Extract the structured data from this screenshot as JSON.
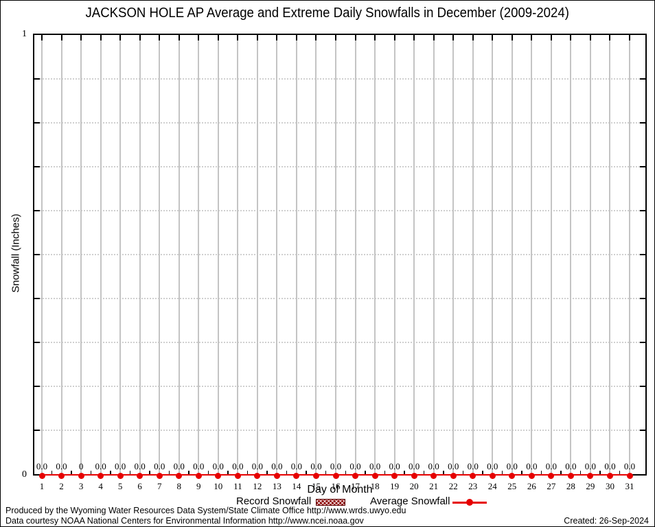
{
  "title": "JACKSON HOLE AP Average and Extreme Daily Snowfalls in December (2009-2024)",
  "chart_data": {
    "type": "bar",
    "title": "JACKSON HOLE AP Average and Extreme Daily Snowfalls in December (2009-2024)",
    "xlabel": "Day of Month",
    "ylabel": "Snowfall (Inches)",
    "ylim": [
      0,
      1
    ],
    "ytick_labels": [
      "0",
      "1"
    ],
    "minor_grid_step": 0.1,
    "grid": "on",
    "legend_position": "bottom",
    "categories": [
      1,
      2,
      3,
      4,
      5,
      6,
      7,
      8,
      9,
      10,
      11,
      12,
      13,
      14,
      15,
      16,
      17,
      18,
      19,
      20,
      21,
      22,
      23,
      24,
      25,
      26,
      27,
      28,
      29,
      30,
      31
    ],
    "series": [
      {
        "name": "Record Snowfall",
        "type": "bar",
        "color": "#8b0000",
        "values": [
          0,
          0,
          0,
          0,
          0,
          0,
          0,
          0,
          0,
          0,
          0,
          0,
          0,
          0,
          0,
          0,
          0,
          0,
          0,
          0,
          0,
          0,
          0,
          0,
          0,
          0,
          0,
          0,
          0,
          0,
          0
        ]
      },
      {
        "name": "Average Snowfall",
        "type": "line",
        "color": "#e60000",
        "values": [
          0.0,
          0.0,
          0.0,
          0.0,
          0.0,
          0.0,
          0.0,
          0.0,
          0.0,
          0.0,
          0.0,
          0.0,
          0.0,
          0.0,
          0.0,
          0.0,
          0.0,
          0.0,
          0.0,
          0.0,
          0.0,
          0.0,
          0.0,
          0.0,
          0.0,
          0.0,
          0.0,
          0.0,
          0.0,
          0.0,
          0.0
        ]
      }
    ],
    "point_labels": [
      "0.0",
      "0.0",
      "0",
      "0.0",
      "0.0",
      "0.0",
      "0.0",
      "0.0",
      "0.0",
      "0.0",
      "0.0",
      "0.0",
      "0.0",
      "0.0",
      "0.0",
      "0.0",
      "0.0",
      "0.0",
      "0.0",
      "0.0",
      "0.0",
      "0.0",
      "0.0",
      "0.0",
      "0.0",
      "0.0",
      "0.0",
      "0.0",
      "0.0",
      "0.0",
      "0.0"
    ]
  },
  "colors": {
    "line_red": "#e60000",
    "record_dark_red": "#8b0000",
    "gridline_gray": "#c4c4c4",
    "dotted_gray": "#cfcfcf",
    "frame_black": "#000000"
  },
  "footer": {
    "line1": "Produced by the Wyoming Water Resources Data System/State Climate Office http://www.wrds.uwyo.edu",
    "line2": "Data courtesy NOAA National Centers for Environmental Information http://www.ncei.noaa.gov",
    "created": "Created: 26-Sep-2024"
  }
}
